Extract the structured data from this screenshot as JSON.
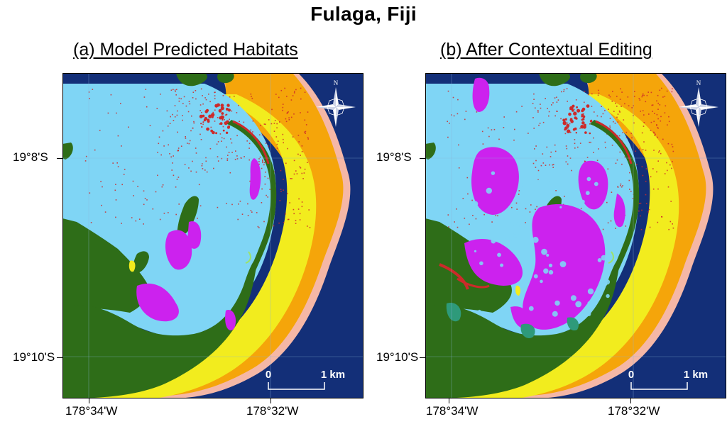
{
  "title": "Fulaga, Fiji",
  "panels": [
    {
      "title": "(a) Model Predicted Habitats",
      "variant": "predicted"
    },
    {
      "title": "(b) After Contextual Editing",
      "variant": "edited"
    }
  ],
  "latitude_labels": [
    "19°8'S",
    "19°10'S"
  ],
  "longitude_labels": [
    "178°34'W",
    "178°32'W"
  ],
  "north_label": "N",
  "scale_bar": {
    "start_label": "0",
    "end_label": "1 km"
  },
  "colors": {
    "deep_water": "#132F78",
    "lagoon": "#7FD5F5",
    "land": "#2E6D18",
    "reef_crest": "#F5B7A6",
    "outer_reef": "#F5A50A",
    "reef_flat": "#F2EC1E",
    "coral_patch": "#CC2A2A",
    "seagrass": "#CC22EE",
    "algae": "#2E9A7A",
    "fringe_green": "#9CE26A"
  }
}
